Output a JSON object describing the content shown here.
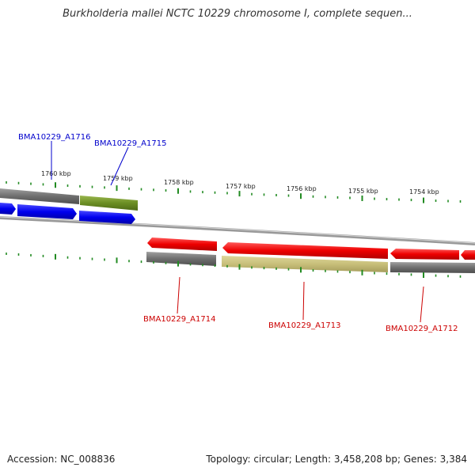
{
  "title": "Burkholderia mallei NCTC 10229 chromosome I, complete sequen...",
  "footer": {
    "accession": "Accession: NC_008836",
    "summary": "Topology: circular; Length: 3,458,208 bp; Genes: 3,384"
  },
  "scale_labels": [
    "1760 kbp",
    "1759 kbp",
    "1758 kbp",
    "1757 kbp",
    "1756 kbp",
    "1755 kbp",
    "1754 kbp"
  ],
  "colors": {
    "forward_cds": "#0000ee",
    "reverse_cds": "#ee0000",
    "forward_label": "#0000cc",
    "reverse_label": "#cc0000",
    "gene_gray": "#777777",
    "gene_olive": "#6b8e23",
    "gene_khaki": "#c8bf7a",
    "tick_green": "#228b22",
    "backbone": "#999999"
  },
  "gene_labels": {
    "a1716": "BMA10229_A1716",
    "a1715": "BMA10229_A1715",
    "a1714": "BMA10229_A1714",
    "a1713": "BMA10229_A1713",
    "a1712": "BMA10229_A1712"
  }
}
